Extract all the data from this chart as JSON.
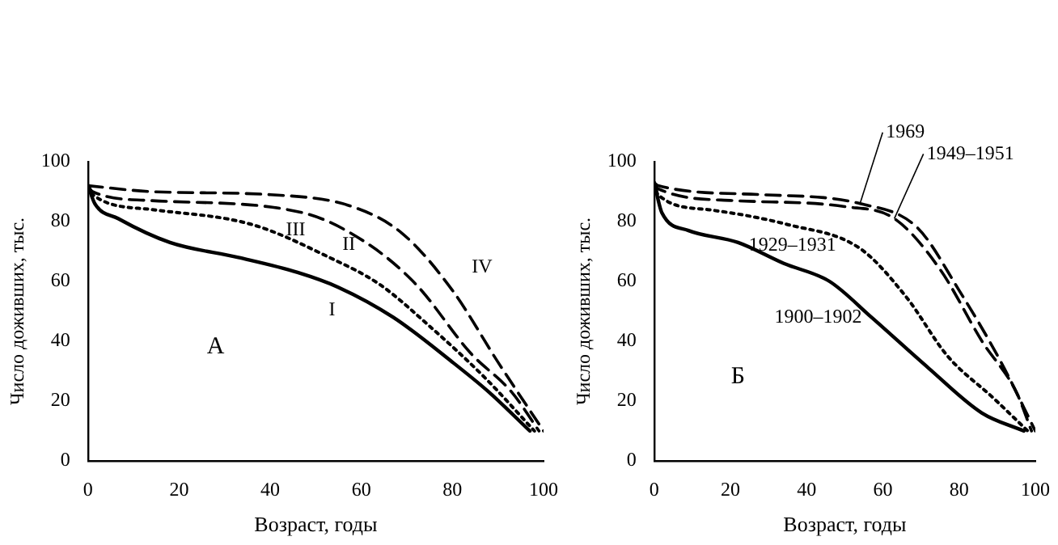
{
  "chart_data": [
    {
      "type": "line",
      "xlabel": "Возраст, годы",
      "ylabel": "Число доживших, тыс.",
      "annotations": [
        "А"
      ],
      "xlim": [
        0,
        100
      ],
      "ylim": [
        0,
        100
      ],
      "xticks": [
        0,
        20,
        40,
        60,
        80,
        100
      ],
      "yticks": [
        0,
        20,
        40,
        60,
        80,
        100
      ],
      "grid": false,
      "legend": false,
      "marker": "none",
      "series": [
        {
          "name": "I",
          "color": "#000000",
          "line_style": "solid",
          "x": [
            0,
            1.5,
            6.6,
            18,
            33,
            46,
            55,
            67,
            80,
            88,
            97
          ],
          "values": [
            92,
            86,
            81,
            73,
            68,
            63,
            58,
            48,
            33,
            23,
            10
          ]
        },
        {
          "name": "II",
          "color": "#000000",
          "line_style": "dotted",
          "x": [
            0,
            1,
            14,
            36,
            53,
            64,
            75,
            87,
            98
          ],
          "values": [
            92,
            89,
            84,
            79,
            68,
            59,
            45,
            28,
            10
          ]
        },
        {
          "name": "III",
          "color": "#000000",
          "line_style": "dashed",
          "x": [
            0,
            1,
            14,
            47,
            61,
            72,
            84,
            93,
            99
          ],
          "values": [
            92,
            90,
            87,
            83,
            73,
            59,
            36,
            23,
            10
          ]
        },
        {
          "name": "IV",
          "color": "#000000",
          "line_style": "dashed",
          "x": [
            0,
            14,
            40,
            58,
            69,
            80,
            90,
            100
          ],
          "values": [
            92,
            90,
            89,
            85,
            76,
            57,
            33,
            10
          ]
        }
      ]
    },
    {
      "type": "line",
      "xlabel": "Возраст, годы",
      "ylabel": "Число доживших, тыс.",
      "annotations": [
        "Б"
      ],
      "xlim": [
        0,
        100
      ],
      "ylim": [
        0,
        100
      ],
      "xticks": [
        0,
        20,
        40,
        60,
        80,
        100
      ],
      "yticks": [
        0,
        20,
        40,
        60,
        80,
        100
      ],
      "grid": false,
      "legend": false,
      "marker": "none",
      "series": [
        {
          "name": "1900–1902",
          "color": "#000000",
          "line_style": "solid",
          "x": [
            0,
            2,
            9,
            22,
            34,
            46,
            57,
            72,
            86,
            97
          ],
          "values": [
            93,
            83,
            77,
            73,
            66,
            60,
            48,
            31,
            16,
            10
          ]
        },
        {
          "name": "1929–1931",
          "color": "#000000",
          "line_style": "dotted",
          "x": [
            0,
            1,
            14,
            35,
            54,
            66,
            77,
            89,
            98
          ],
          "values": [
            93,
            89,
            84,
            79,
            71,
            55,
            35,
            21,
            10
          ]
        },
        {
          "name": "1949–1951",
          "color": "#000000",
          "line_style": "dashed",
          "x": [
            0,
            1,
            21,
            50,
            63,
            75,
            86,
            95,
            99
          ],
          "values": [
            93,
            91,
            87,
            85,
            81,
            64,
            40,
            23,
            10
          ]
        },
        {
          "name": "1969",
          "color": "#000000",
          "line_style": "dashed",
          "x": [
            0,
            1,
            28,
            54,
            69,
            80,
            91,
            100
          ],
          "values": [
            93,
            92,
            89,
            86,
            78,
            57,
            33,
            10
          ]
        }
      ]
    }
  ]
}
